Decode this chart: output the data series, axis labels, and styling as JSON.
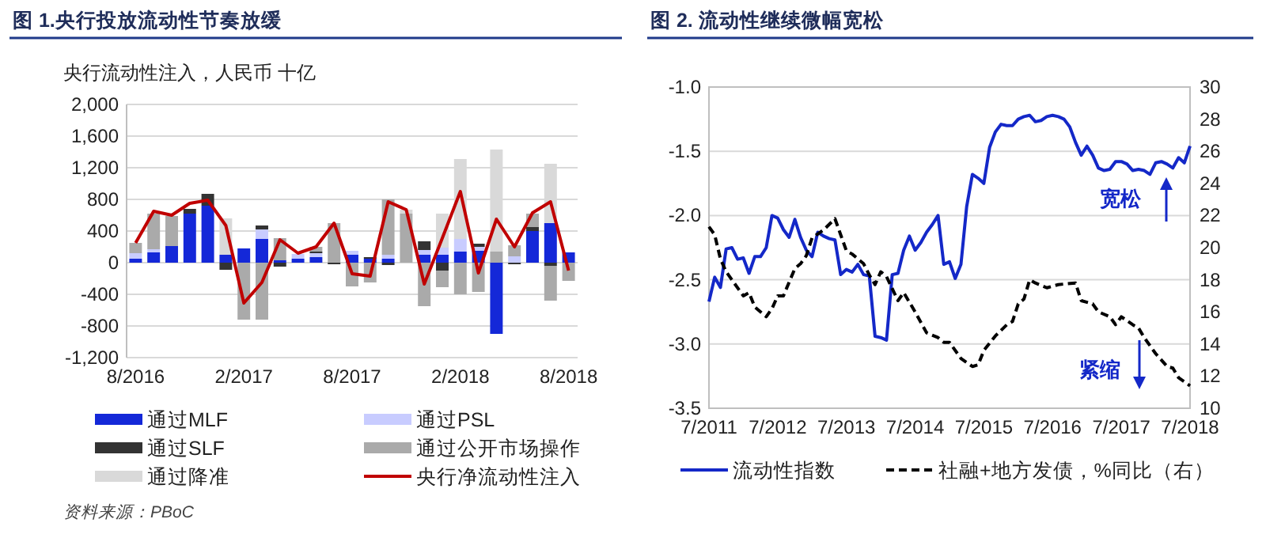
{
  "chart_data": [
    {
      "type": "bar",
      "title": "图 1.央行投放流动性节奏放缓",
      "ylabel": "央行流动性注入，人民币 十亿",
      "categories": [
        "8/2016",
        null,
        null,
        null,
        null,
        null,
        "2/2017",
        null,
        null,
        null,
        null,
        null,
        "8/2017",
        null,
        null,
        null,
        null,
        null,
        "2/2018",
        null,
        null,
        null,
        null,
        null,
        "8/2018"
      ],
      "stacked": true,
      "series": [
        {
          "name": "通过MLF",
          "color": "#1428d8",
          "values": [
            50,
            130,
            210,
            620,
            720,
            100,
            180,
            300,
            30,
            50,
            70,
            null,
            100,
            50,
            50,
            null,
            100,
            100,
            140,
            150,
            -900,
            null,
            400,
            500,
            130
          ]
        },
        {
          "name": "通过PSL",
          "color": "#c8ccff",
          "values": [
            70,
            40,
            null,
            null,
            null,
            null,
            null,
            120,
            null,
            60,
            50,
            null,
            50,
            null,
            50,
            null,
            60,
            90,
            160,
            50,
            null,
            80,
            null,
            null,
            null
          ]
        },
        {
          "name": "通过SLF",
          "color": "#333333",
          "values": [
            null,
            null,
            null,
            60,
            150,
            -90,
            null,
            50,
            -50,
            null,
            20,
            -20,
            null,
            20,
            -30,
            null,
            110,
            -100,
            null,
            40,
            null,
            -20,
            50,
            -40,
            null
          ]
        },
        {
          "name": "通过公开市场操作",
          "color": "#aaaaaa",
          "values": [
            130,
            450,
            380,
            null,
            null,
            null,
            -720,
            -720,
            280,
            null,
            60,
            500,
            -300,
            -250,
            700,
            620,
            -550,
            -210,
            -400,
            -370,
            140,
            140,
            170,
            -440,
            -230
          ]
        },
        {
          "name": "通过降准",
          "color": "#d9d9d9",
          "values": [
            null,
            null,
            null,
            null,
            null,
            460,
            null,
            null,
            null,
            null,
            null,
            null,
            null,
            null,
            null,
            50,
            null,
            430,
            1010,
            null,
            1290,
            null,
            null,
            750,
            null
          ]
        },
        {
          "name": "央行净流动性注入",
          "type": "line",
          "color": "#c00000",
          "values": [
            250,
            650,
            600,
            750,
            790,
            470,
            -510,
            -250,
            290,
            120,
            200,
            500,
            -140,
            -170,
            770,
            670,
            -270,
            310,
            900,
            -130,
            550,
            200,
            630,
            770,
            -100
          ]
        }
      ],
      "ylim": [
        -1200,
        2000
      ],
      "yticks": [
        {
          "value": -1200,
          "label": "-1,200"
        },
        -800,
        -400,
        0,
        400,
        800,
        {
          "value": 1200,
          "label": "1,200"
        },
        {
          "value": 1600,
          "label": "1,600"
        },
        {
          "value": 2000,
          "label": "2,000"
        }
      ],
      "grid": "y",
      "legend": "bottom",
      "annotations": [
        "资料来源：PBoC"
      ]
    },
    {
      "type": "line",
      "title": "图 2. 流动性继续微幅宽松",
      "x": [
        "2011-07",
        "2011-08",
        "2011-09",
        "2011-10",
        "2011-11",
        "2011-12",
        "2012-01",
        "2012-02",
        "2012-03",
        "2012-04",
        "2012-05",
        "2012-06",
        "2012-07",
        "2012-08",
        "2012-09",
        "2012-10",
        "2012-11",
        "2012-12",
        "2013-01",
        "2013-02",
        "2013-03",
        "2013-04",
        "2013-05",
        "2013-06",
        "2013-07",
        "2013-08",
        "2013-09",
        "2013-10",
        "2013-11",
        "2013-12",
        "2014-01",
        "2014-02",
        "2014-03",
        "2014-04",
        "2014-05",
        "2014-06",
        "2014-07",
        "2014-08",
        "2014-09",
        "2014-10",
        "2014-11",
        "2014-12",
        "2015-01",
        "2015-02",
        "2015-03",
        "2015-04",
        "2015-05",
        "2015-06",
        "2015-07",
        "2015-08",
        "2015-09",
        "2015-10",
        "2015-11",
        "2015-12",
        "2016-01",
        "2016-02",
        "2016-03",
        "2016-04",
        "2016-05",
        "2016-06",
        "2016-07",
        "2016-08",
        "2016-09",
        "2016-10",
        "2016-11",
        "2016-12",
        "2017-01",
        "2017-02",
        "2017-03",
        "2017-04",
        "2017-05",
        "2017-06",
        "2017-07",
        "2017-08",
        "2017-09",
        "2017-10",
        "2017-11",
        "2017-12",
        "2018-01",
        "2018-02",
        "2018-03",
        "2018-04",
        "2018-05",
        "2018-06",
        "2018-07"
      ],
      "series": [
        {
          "name": "流动性指数",
          "color": "#1428c8",
          "values": [
            -2.67,
            -2.48,
            -2.56,
            -2.26,
            -2.25,
            -2.34,
            -2.33,
            -2.45,
            -2.32,
            -2.32,
            -2.25,
            -2.0,
            -2.02,
            -2.11,
            -2.17,
            -2.03,
            -2.17,
            -2.27,
            -2.32,
            -2.13,
            -2.16,
            -2.18,
            -2.19,
            -2.46,
            -2.42,
            -2.44,
            -2.38,
            -2.46,
            -2.47,
            -2.94,
            -2.95,
            -2.97,
            -2.46,
            -2.45,
            -2.27,
            -2.16,
            -2.27,
            -2.21,
            -2.13,
            -2.07,
            -2.0,
            -2.38,
            -2.36,
            -2.49,
            -2.38,
            -1.93,
            -1.68,
            -1.71,
            -1.75,
            -1.47,
            -1.35,
            -1.29,
            -1.3,
            -1.3,
            -1.25,
            -1.23,
            -1.22,
            -1.27,
            -1.26,
            -1.23,
            -1.22,
            -1.23,
            -1.25,
            -1.31,
            -1.43,
            -1.53,
            -1.46,
            -1.53,
            -1.63,
            -1.65,
            -1.64,
            -1.58,
            -1.58,
            -1.6,
            -1.65,
            -1.64,
            -1.65,
            -1.68,
            -1.59,
            -1.58,
            -1.6,
            -1.63,
            -1.55,
            -1.59,
            -1.46
          ]
        },
        {
          "name": "社融+地方发债，%同比（右）",
          "color": "#000000",
          "line_style": "dashed",
          "axis": "y2",
          "x": [
            "2011-07",
            "2011-08",
            "2011-09",
            "2011-10",
            "2011-11",
            "2012-01",
            "2012-02",
            "2012-03",
            "2012-05",
            "2012-06",
            "2012-07",
            "2012-08",
            "2012-10",
            "2012-11",
            "2012-12",
            "2013-01",
            "2013-03",
            "2013-05",
            "2013-06",
            "2013-07",
            "2013-08",
            "2013-10",
            "2013-11",
            "2013-12",
            "2014-01",
            "2014-02",
            "2014-04",
            "2014-05",
            "2014-07",
            "2014-09",
            "2014-11",
            "2014-12",
            "2015-01",
            "2015-03",
            "2015-05",
            "2015-06",
            "2015-07",
            "2015-09",
            "2015-11",
            "2015-12",
            "2016-01",
            "2016-02",
            "2016-03",
            "2016-04",
            "2016-06",
            "2016-08",
            "2016-11",
            "2016-12",
            "2017-02",
            "2017-03",
            "2017-05",
            "2017-06",
            "2017-07",
            "2017-09",
            "2017-10",
            "2017-11",
            "2018-01",
            "2018-03",
            "2018-04",
            "2018-05",
            "2018-07"
          ],
          "values": [
            21.3,
            20.8,
            19.3,
            18.5,
            18.0,
            17.0,
            17.2,
            16.3,
            15.7,
            16.2,
            17.0,
            17.0,
            18.7,
            19.0,
            19.5,
            20.6,
            21.1,
            21.8,
            20.8,
            19.8,
            19.6,
            19.0,
            18.3,
            17.7,
            18.5,
            18.2,
            16.7,
            17.2,
            16.0,
            14.7,
            14.4,
            14.1,
            14.1,
            13.1,
            12.6,
            12.7,
            13.6,
            14.5,
            15.2,
            15.4,
            16.5,
            16.8,
            18.0,
            17.8,
            17.5,
            17.7,
            17.8,
            16.7,
            16.5,
            16.0,
            15.7,
            15.2,
            15.7,
            15.2,
            15.0,
            14.4,
            13.4,
            12.6,
            12.5,
            11.9,
            11.4
          ]
        }
      ],
      "xlim": [
        "2011-07",
        "2018-07"
      ],
      "xticks": [
        {
          "value": "2011-07",
          "label": "7/2011"
        },
        {
          "value": "2012-07",
          "label": "7/2012"
        },
        {
          "value": "2013-07",
          "label": "7/2013"
        },
        {
          "value": "2014-07",
          "label": "7/2014"
        },
        {
          "value": "2015-07",
          "label": "7/2015"
        },
        {
          "value": "2016-07",
          "label": "7/2016"
        },
        {
          "value": "2017-07",
          "label": "7/2017"
        },
        {
          "value": "2018-07",
          "label": "7/2018"
        }
      ],
      "ylim": [
        -3.5,
        -1.0
      ],
      "yticks": [
        {
          "value": -3.5,
          "label": "-3.5"
        },
        {
          "value": -3.0,
          "label": "-3.0"
        },
        {
          "value": -2.5,
          "label": "-2.5"
        },
        {
          "value": -2.0,
          "label": "-2.0"
        },
        {
          "value": -1.5,
          "label": "-1.5"
        },
        {
          "value": -1.0,
          "label": "-1.0"
        }
      ],
      "y2lim": [
        10,
        30
      ],
      "y2ticks": [
        10,
        12,
        14,
        16,
        18,
        20,
        22,
        24,
        26,
        28,
        30
      ],
      "grid": "y",
      "legend": "bottom",
      "annotations": [
        "宽松",
        "紧缩"
      ]
    }
  ]
}
